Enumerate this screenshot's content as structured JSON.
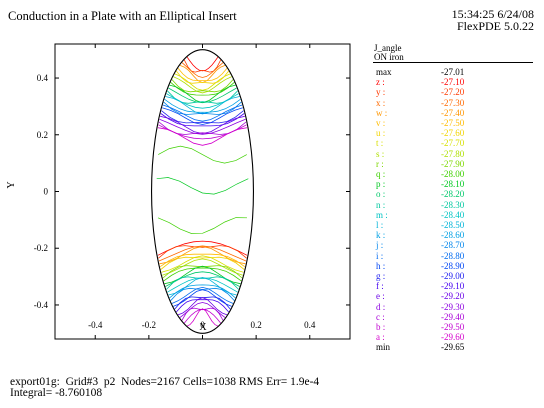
{
  "header": {
    "title": "Conduction in a Plate with an Elliptical Insert",
    "time": "15:34:25 6/24/08",
    "version": "FlexPDE 5.0.22"
  },
  "footer": {
    "line1": "export01g:  Grid#3  p2  Nodes=2167 Cells=1038 RMS Err= 1.9e-4",
    "line2": "Integral= -8.760108"
  },
  "chart_data": {
    "type": "contour",
    "xlabel": "X",
    "ylabel": "Y",
    "xlim": [
      -0.55,
      0.55
    ],
    "ylim": [
      -0.52,
      0.52
    ],
    "x_ticks": [
      -0.4,
      -0.2,
      0,
      0.2,
      0.4
    ],
    "y_ticks": [
      0.4,
      0.2,
      0,
      -0.2,
      -0.4
    ],
    "x_tick_labels": [
      "-0.4",
      "-0.2",
      "0",
      "0.2",
      "0.4"
    ],
    "y_tick_labels": [
      "0.4",
      "0.2",
      "0",
      "-0.2",
      "-0.4"
    ],
    "region": {
      "shape": "ellipse",
      "cx": 0,
      "cy": 0,
      "rx": 0.19,
      "ry": 0.5
    },
    "legend": {
      "title": "J_angle",
      "subtitle": "ON iron",
      "max_label": "max",
      "max_value": "-27.01",
      "min_label": "min",
      "min_value": "-29.65",
      "levels": [
        {
          "label": "z :",
          "value": "-27.10",
          "color": "#ff0000"
        },
        {
          "label": "y :",
          "value": "-27.20",
          "color": "#ff3a00"
        },
        {
          "label": "x :",
          "value": "-27.30",
          "color": "#ff6a00"
        },
        {
          "label": "w :",
          "value": "-27.40",
          "color": "#ff9600"
        },
        {
          "label": "v :",
          "value": "-27.50",
          "color": "#ffbc00"
        },
        {
          "label": "u :",
          "value": "-27.60",
          "color": "#f2d400"
        },
        {
          "label": "t :",
          "value": "-27.70",
          "color": "#d8e000"
        },
        {
          "label": "s :",
          "value": "-27.80",
          "color": "#aee000"
        },
        {
          "label": "r :",
          "value": "-27.90",
          "color": "#7ed800"
        },
        {
          "label": "q :",
          "value": "-28.00",
          "color": "#3ed000"
        },
        {
          "label": "p :",
          "value": "-28.10",
          "color": "#00c820"
        },
        {
          "label": "o :",
          "value": "-28.20",
          "color": "#00c86a"
        },
        {
          "label": "n :",
          "value": "-28.30",
          "color": "#00c8a0"
        },
        {
          "label": "m :",
          "value": "-28.40",
          "color": "#00c4c4"
        },
        {
          "label": "l :",
          "value": "-28.50",
          "color": "#00b4d8"
        },
        {
          "label": "k :",
          "value": "-28.60",
          "color": "#00a0e4"
        },
        {
          "label": "j :",
          "value": "-28.70",
          "color": "#0086ec"
        },
        {
          "label": "i :",
          "value": "-28.80",
          "color": "#006af0"
        },
        {
          "label": "h :",
          "value": "-28.90",
          "color": "#0046f4"
        },
        {
          "label": "g :",
          "value": "-29.00",
          "color": "#2020f0"
        },
        {
          "label": "f :",
          "value": "-29.10",
          "color": "#4400f0"
        },
        {
          "label": "e :",
          "value": "-29.20",
          "color": "#6a00e8"
        },
        {
          "label": "d :",
          "value": "-29.30",
          "color": "#8c00e0"
        },
        {
          "label": "c :",
          "value": "-29.40",
          "color": "#a800d8"
        },
        {
          "label": "b :",
          "value": "-29.50",
          "color": "#c000d0"
        },
        {
          "label": "a :",
          "value": "-29.60",
          "color": "#d400cc"
        }
      ]
    }
  }
}
